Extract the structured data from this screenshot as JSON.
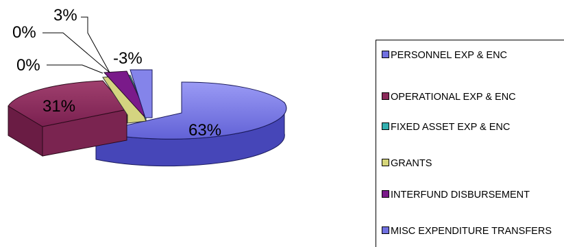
{
  "chart_data": {
    "type": "pie",
    "title": "",
    "slices": [
      {
        "label": "PERSONNEL EXP & ENC",
        "value": 63,
        "display": "63%",
        "color": "#7070e0"
      },
      {
        "label": "OPERATIONAL EXP & ENC",
        "value": 31,
        "display": "31%",
        "color": "#8a2a5a"
      },
      {
        "label": "FIXED ASSET EXP & ENC",
        "value": 0,
        "display": "0%",
        "color": "#33b0b0"
      },
      {
        "label": "GRANTS",
        "value": 0,
        "display": "0%",
        "color": "#d6d67a"
      },
      {
        "label": "INTERFUND DISBURSEMENT",
        "value": 3,
        "display": "3%",
        "color": "#7a1a8a"
      },
      {
        "label": "MISC EXPENDITURE TRANSFERS",
        "value": -3,
        "display": "-3%",
        "color": "#7070e0"
      }
    ],
    "legend": {
      "placement": "right"
    }
  }
}
